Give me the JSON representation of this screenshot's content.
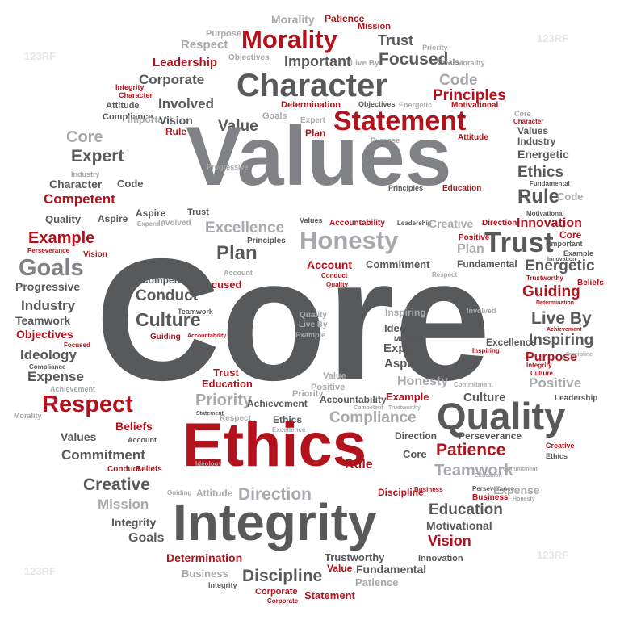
{
  "words": {
    "core": "Core",
    "values": "Values",
    "ethics": "Ethics",
    "integrity": "Integrity",
    "character": "Character",
    "statement": "Statement",
    "morality": "Morality",
    "honesty": "Honesty",
    "trust": "Trust",
    "quality": "Quality",
    "respect": "Respect",
    "plan": "Plan",
    "goals": "Goals",
    "culture": "Culture",
    "conduct": "Conduct",
    "discipline": "Discipline",
    "direction": "Direction",
    "patience": "Patience",
    "creative": "Creative",
    "commitment": "Commitment",
    "education": "Education",
    "teamwork": "Teamwork",
    "expert": "Expert",
    "rule": "Rule",
    "ethics_small": "Ethics",
    "energetic": "Energetic",
    "live_by": "Live By",
    "inspiring": "Inspiring",
    "purpose": "Purpose",
    "positive": "Positive",
    "guiding": "Guiding",
    "innovation": "Innovation",
    "principles": "Principles",
    "focused": "Focused",
    "important": "Important",
    "corporate": "Corporate",
    "involved": "Involved",
    "leadership": "Leadership",
    "excellence": "Excellence",
    "competent": "Competent",
    "example": "Example",
    "progressive": "Progressive",
    "industry": "Industry",
    "objectives": "Objectives",
    "ideology": "Ideology",
    "expense": "Expense",
    "beliefs": "Beliefs",
    "mission": "Mission",
    "determination": "Determination",
    "business": "Business",
    "vision": "Vision",
    "motivational": "Motivational",
    "fundamental": "Fundamental",
    "trustworthy": "Trustworthy",
    "compliance": "Compliance",
    "priority": "Priority",
    "accountability": "Accountability",
    "achievement": "Achievement",
    "attitude": "Attitude",
    "aspire": "Aspire",
    "perseverance": "Perseverance",
    "value": "Value",
    "account": "Account",
    "code": "Code",
    "teamwork_small": "Teamwork"
  },
  "watermark": "123RF"
}
